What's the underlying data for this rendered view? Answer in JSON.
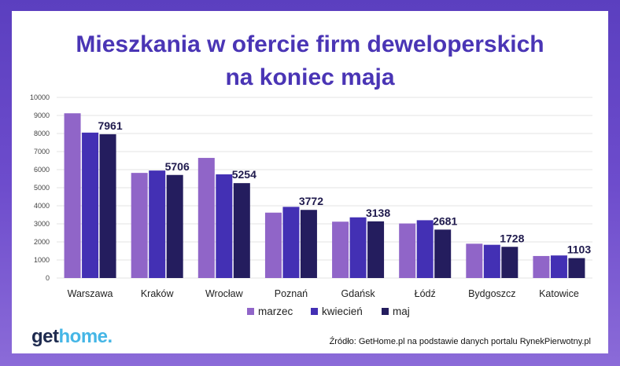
{
  "title_line1": "Mieszkania w ofercie firm deweloperskich",
  "title_line2": "na koniec maja",
  "logo": {
    "part1": "get",
    "part2": "home."
  },
  "source": "Źródło: GetHome.pl na podstawie danych portalu RynekPierwotny.pl",
  "colors": {
    "marzec": "#9065c8",
    "kwiecien": "#4330b4",
    "maj": "#241d5e",
    "title": "#4a35b5"
  },
  "chart_data": {
    "type": "bar",
    "title": "Mieszkania w ofercie firm deweloperskich na koniec maja",
    "categories": [
      "Warszawa",
      "Kraków",
      "Wrocław",
      "Poznań",
      "Gdańsk",
      "Łódź",
      "Bydgoszcz",
      "Katowice"
    ],
    "series": [
      {
        "name": "marzec",
        "values": [
          9120,
          5820,
          6650,
          3620,
          3120,
          3020,
          1900,
          1220
        ]
      },
      {
        "name": "kwiecień",
        "values": [
          8050,
          5950,
          5740,
          3940,
          3360,
          3200,
          1840,
          1250
        ]
      },
      {
        "name": "maj",
        "values": [
          7961,
          5706,
          5254,
          3772,
          3138,
          2681,
          1728,
          1103
        ]
      }
    ],
    "data_labels": [
      "7961",
      "5706",
      "5254",
      "3772",
      "3138",
      "2681",
      "1728",
      "1103"
    ],
    "ylim": [
      0,
      10000
    ],
    "yticks": [
      "0",
      "1000",
      "2000",
      "3000",
      "4000",
      "5000",
      "6000",
      "7000",
      "8000",
      "9000",
      "10000"
    ],
    "grid": true,
    "legend_position": "bottom"
  }
}
